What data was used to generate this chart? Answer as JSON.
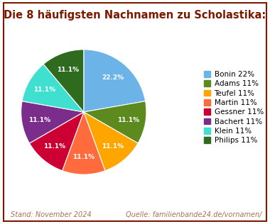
{
  "title": "Die 8 häufigsten Nachnamen zu Scholastika:",
  "title_color": "#7B1A00",
  "title_fontsize": 10.5,
  "background_color": "#FFFFFF",
  "border_color": "#7B1A00",
  "footer_left": "Stand: November 2024",
  "footer_right": "Quelle: familienbande24.de/vornamen/",
  "footer_color": "#B07050",
  "footer_fontsize": 7,
  "labels": [
    "Bonin",
    "Adams",
    "Teufel",
    "Martin",
    "Gessner",
    "Bachert",
    "Klein",
    "Philips"
  ],
  "legend_labels": [
    "Bonin 22%",
    "Adams 11%",
    "Teufel 11%",
    "Martin 11%",
    "Gessner 11%",
    "Bachert 11%",
    "Klein 11%",
    "Philips 11%"
  ],
  "sizes": [
    22.2,
    11.1,
    11.1,
    11.1,
    11.1,
    11.1,
    11.1,
    11.1
  ],
  "colors": [
    "#6CB4E8",
    "#5C8A1E",
    "#FFA500",
    "#FF6B3D",
    "#CC0033",
    "#7B2D8B",
    "#40E0D0",
    "#2E6B1E"
  ],
  "autopct_fontsize": 6.5,
  "autopct_color": "#FFFFFF",
  "startangle": 90,
  "legend_fontsize": 7.5
}
